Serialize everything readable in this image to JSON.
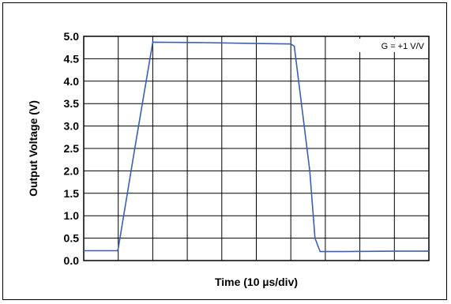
{
  "chart_data": {
    "type": "line",
    "title": "",
    "xlabel": "Time (10 µs/div)",
    "ylabel": "Output Voltage (V)",
    "ylim": [
      0,
      5
    ],
    "yticks": [
      "0.0",
      "0.5",
      "1.0",
      "1.5",
      "2.0",
      "2.5",
      "3.0",
      "3.5",
      "4.0",
      "4.5",
      "5.0"
    ],
    "xlim": [
      0,
      10
    ],
    "x_divisions": 10,
    "grid": true,
    "annotation": "G = +1 V/V",
    "series": [
      {
        "color": "#3b5fb8",
        "x": [
          0,
          0.98,
          1.0,
          1.5,
          2.0,
          3.5,
          5.0,
          6.0,
          6.1,
          6.55,
          6.7,
          6.85,
          7.5,
          9.0,
          10.0
        ],
        "y": [
          0.22,
          0.22,
          0.27,
          2.6,
          4.87,
          4.86,
          4.84,
          4.83,
          4.78,
          2.0,
          0.5,
          0.2,
          0.2,
          0.21,
          0.21
        ]
      }
    ]
  }
}
